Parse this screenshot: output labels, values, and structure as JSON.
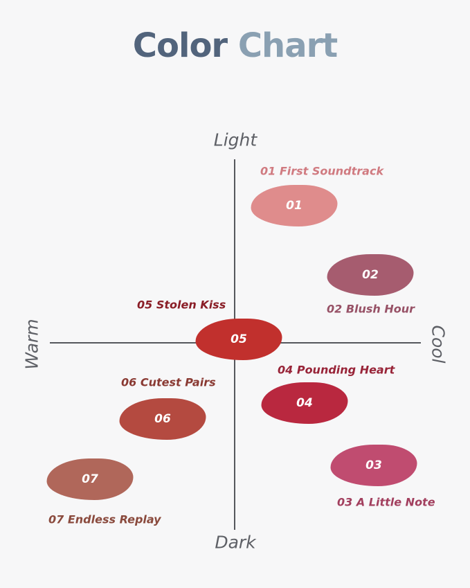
{
  "title": {
    "part1": "Color",
    "part2": "Chart"
  },
  "axes": {
    "top": "Light",
    "bottom": "Dark",
    "left": "Warm",
    "right": "Cool"
  },
  "shades": [
    {
      "num": "01",
      "label": "01 First Soundtrack",
      "swatch": "#df8c8c",
      "text": "#d07a80"
    },
    {
      "num": "02",
      "label": "02 Blush Hour",
      "swatch": "#a65c6f",
      "text": "#975166"
    },
    {
      "num": "03",
      "label": "03 A Little Note",
      "swatch": "#c04c70",
      "text": "#a23f5e"
    },
    {
      "num": "04",
      "label": "04 Pounding Heart",
      "swatch": "#b9283f",
      "text": "#982438"
    },
    {
      "num": "05",
      "label": "05 Stolen Kiss",
      "swatch": "#c1302d",
      "text": "#8a1e27"
    },
    {
      "num": "06",
      "label": "06 Cutest Pairs",
      "swatch": "#b44a40",
      "text": "#8a3a33"
    },
    {
      "num": "07",
      "label": "07 Endless Replay",
      "swatch": "#b0675a",
      "text": "#8a4a3d"
    }
  ]
}
